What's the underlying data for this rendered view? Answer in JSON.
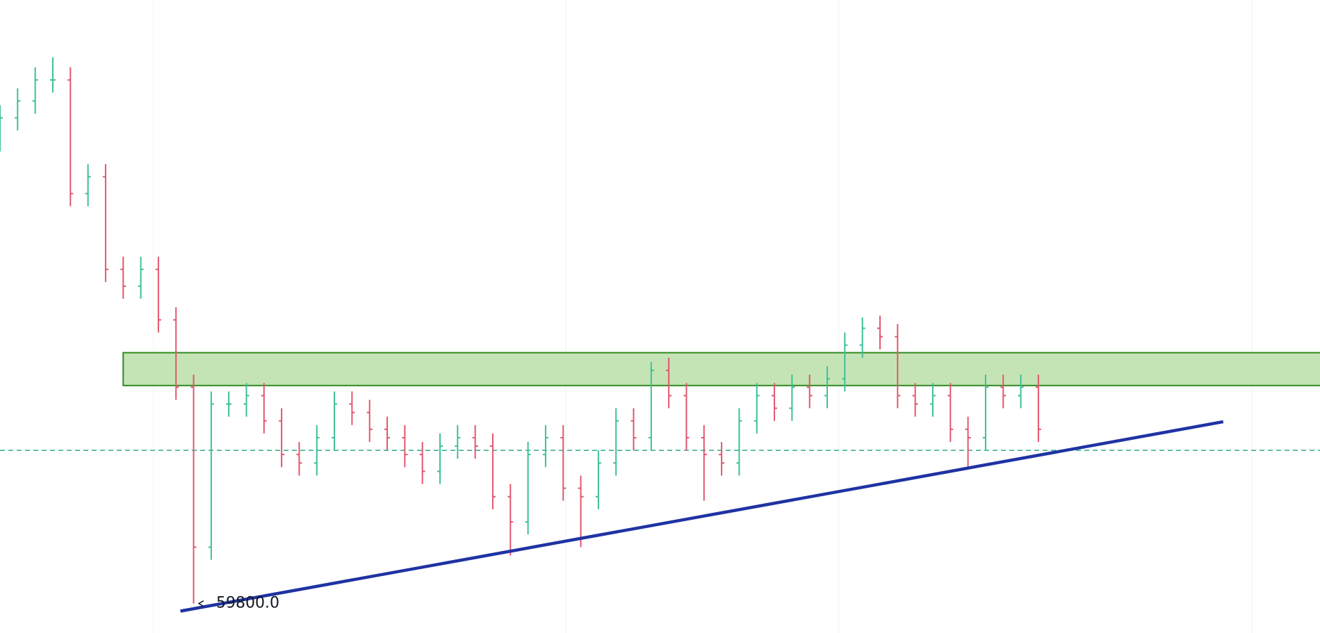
{
  "chart_data": {
    "type": "ohlc",
    "xlim": [
      0,
      300
    ],
    "ylim": [
      59450,
      66970
    ],
    "up_color": "#3bbf9a",
    "down_color": "#e2566b",
    "x": [
      0,
      4,
      8,
      12,
      16,
      20,
      24,
      28,
      32,
      36,
      40,
      44,
      48,
      52,
      56,
      60,
      64,
      68,
      72,
      76,
      80,
      84,
      88,
      92,
      96,
      100,
      104,
      108,
      112,
      116,
      120,
      124,
      128,
      132,
      136,
      140,
      144,
      148,
      152,
      156,
      160,
      164,
      168,
      172,
      176,
      180,
      184,
      188,
      192,
      196,
      200,
      204,
      208,
      212,
      216,
      220,
      224,
      228,
      232,
      236
    ],
    "open": [
      65320,
      65570,
      65770,
      66020,
      66020,
      64670,
      64870,
      63770,
      63570,
      63770,
      63170,
      62370,
      60470,
      62170,
      62170,
      62270,
      61970,
      61570,
      61470,
      61770,
      62170,
      62070,
      61870,
      61770,
      61570,
      61370,
      61670,
      61770,
      61670,
      61070,
      60770,
      61570,
      61770,
      61170,
      61070,
      61470,
      61970,
      61770,
      62570,
      62270,
      61770,
      61570,
      61470,
      61970,
      62270,
      62120,
      62370,
      62270,
      62470,
      62870,
      63070,
      62970,
      62270,
      62170,
      62270,
      61870,
      61770,
      62370,
      62270,
      62370
    ],
    "high": [
      65720,
      65920,
      66170,
      66290,
      66170,
      65020,
      65020,
      63920,
      63920,
      63920,
      63320,
      62520,
      62320,
      62320,
      62420,
      62420,
      62120,
      61720,
      61920,
      62320,
      62320,
      62220,
      62020,
      61920,
      61720,
      61820,
      61920,
      61920,
      61820,
      61220,
      61720,
      61920,
      61920,
      61320,
      61620,
      62120,
      62120,
      62670,
      62720,
      62420,
      61920,
      61720,
      62120,
      62420,
      62420,
      62520,
      62520,
      62620,
      63020,
      63200,
      63220,
      63120,
      62420,
      62420,
      62420,
      62020,
      62520,
      62520,
      62520,
      62520
    ],
    "low": [
      65170,
      65420,
      65620,
      65870,
      64520,
      64520,
      63620,
      63420,
      63420,
      63020,
      62220,
      59800,
      60320,
      62020,
      62020,
      61820,
      61420,
      61320,
      61320,
      61620,
      61920,
      61720,
      61620,
      61420,
      61220,
      61220,
      61520,
      61520,
      60920,
      60370,
      60620,
      61420,
      61020,
      60470,
      60920,
      61320,
      61620,
      61620,
      62120,
      61620,
      61020,
      61320,
      61320,
      61820,
      61970,
      61970,
      62120,
      62120,
      62320,
      62720,
      62820,
      62120,
      62020,
      62020,
      61720,
      61420,
      61620,
      62120,
      62120,
      61720
    ],
    "close": [
      65570,
      65770,
      66020,
      66020,
      64670,
      64870,
      63770,
      63570,
      63770,
      63170,
      62370,
      60470,
      62170,
      62170,
      62270,
      61970,
      61570,
      61470,
      61770,
      62170,
      62070,
      61870,
      61770,
      61570,
      61370,
      61670,
      61770,
      61670,
      61070,
      60770,
      61570,
      61770,
      61170,
      61070,
      61470,
      61970,
      61770,
      62570,
      62270,
      61770,
      61570,
      61470,
      61970,
      62270,
      62120,
      62370,
      62270,
      62470,
      62870,
      63070,
      62970,
      62270,
      62170,
      62270,
      61870,
      61770,
      62370,
      62270,
      62370,
      61870
    ],
    "zones": [
      {
        "xmin": 28,
        "ymin": 62390,
        "ymax": 62780,
        "fill": "#c5e4b6",
        "stroke": "#2e8a1e"
      }
    ],
    "trendlines": [
      {
        "x": [
          41,
          278
        ],
        "y": [
          59710,
          61960
        ],
        "color": "#1f33a3"
      }
    ],
    "hlines": [
      {
        "y": 61620,
        "color": "#2fa98a",
        "dashed": true
      }
    ],
    "annotations": [
      {
        "value": 59800,
        "label": "59800.0"
      }
    ]
  }
}
